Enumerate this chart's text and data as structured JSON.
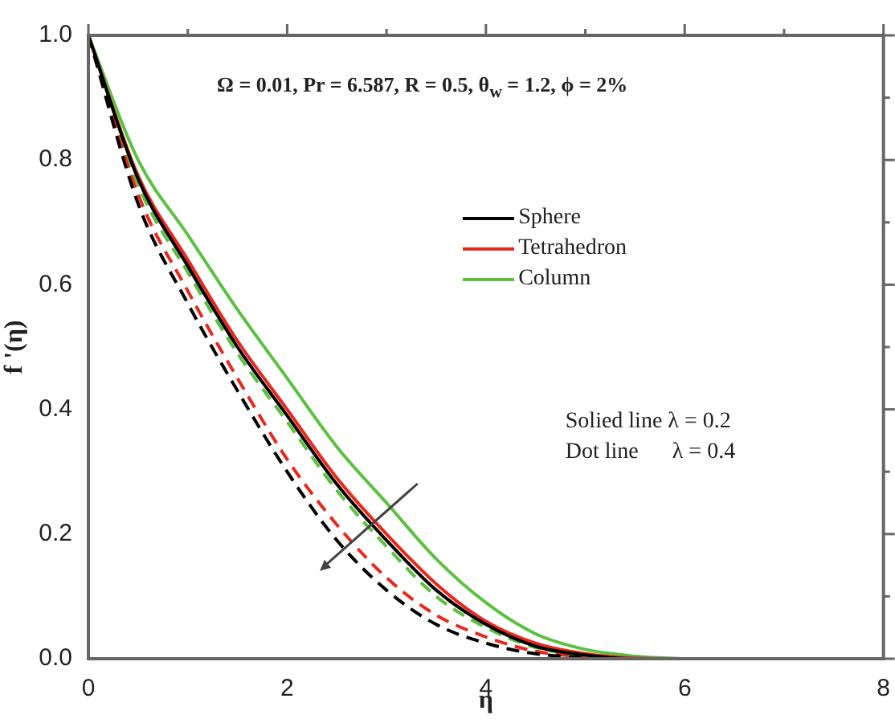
{
  "chart_data": {
    "type": "line",
    "xlabel": "η",
    "ylabel": "f '(η)",
    "annotations": [
      "Ω = 0.01, Pr = 6.587, R = 0.5, θ$_{w}$ = 1.2, ϕ = 2%",
      "Solied line λ = 0.2",
      "Dot line      λ = 0.4"
    ],
    "x": [
      0,
      0.5,
      1,
      1.5,
      2,
      2.5,
      3,
      3.5,
      4,
      4.5,
      5,
      5.5,
      6
    ],
    "series": [
      {
        "name": "Sphere",
        "color": "#000000",
        "line_style": "solid",
        "values": [
          1,
          0.77,
          0.63,
          0.5,
          0.39,
          0.28,
          0.19,
          0.11,
          0.055,
          0.02,
          0.006,
          0,
          0
        ]
      },
      {
        "name": "Tetrahedron",
        "color": "#e8281e",
        "line_style": "solid",
        "values": [
          1,
          0.775,
          0.64,
          0.51,
          0.4,
          0.29,
          0.2,
          0.12,
          0.06,
          0.025,
          0.008,
          0.001,
          0
        ]
      },
      {
        "name": "Column",
        "color": "#5cc040",
        "line_style": "solid",
        "values": [
          1,
          0.8,
          0.68,
          0.56,
          0.45,
          0.34,
          0.25,
          0.16,
          0.09,
          0.04,
          0.015,
          0.004,
          0
        ]
      },
      {
        "color": "#000000",
        "line_style": "dashed",
        "values": [
          1,
          0.73,
          0.57,
          0.43,
          0.3,
          0.19,
          0.11,
          0.055,
          0.025,
          0.008,
          0.002,
          0,
          0
        ]
      },
      {
        "color": "#e8281e",
        "line_style": "dashed",
        "values": [
          1,
          0.745,
          0.59,
          0.45,
          0.32,
          0.215,
          0.13,
          0.07,
          0.035,
          0.012,
          0.003,
          0,
          0
        ]
      },
      {
        "color": "#5cc040",
        "line_style": "dashed",
        "values": [
          1,
          0.76,
          0.62,
          0.49,
          0.38,
          0.27,
          0.18,
          0.1,
          0.05,
          0.018,
          0.005,
          0,
          0
        ]
      }
    ],
    "xlim": [
      0,
      8
    ],
    "xticks": [
      0,
      {
        "value": 1,
        "label": null
      },
      2,
      {
        "value": 3,
        "label": null
      },
      4,
      {
        "value": 5,
        "label": null
      },
      6,
      {
        "value": 7,
        "label": null
      },
      8
    ],
    "ylim": [
      0,
      1
    ],
    "yticks": [
      {
        "value": 0,
        "label": "0.0"
      },
      {
        "value": 0.1,
        "label": null
      },
      0.2,
      {
        "value": 0.3,
        "label": null
      },
      0.4,
      {
        "value": 0.5,
        "label": null
      },
      0.6,
      {
        "value": 0.7,
        "label": null
      },
      0.8,
      {
        "value": 0.9,
        "label": null
      },
      {
        "value": 1,
        "label": "1.0"
      }
    ],
    "grid": false,
    "legend": "top right",
    "marker": "none"
  }
}
